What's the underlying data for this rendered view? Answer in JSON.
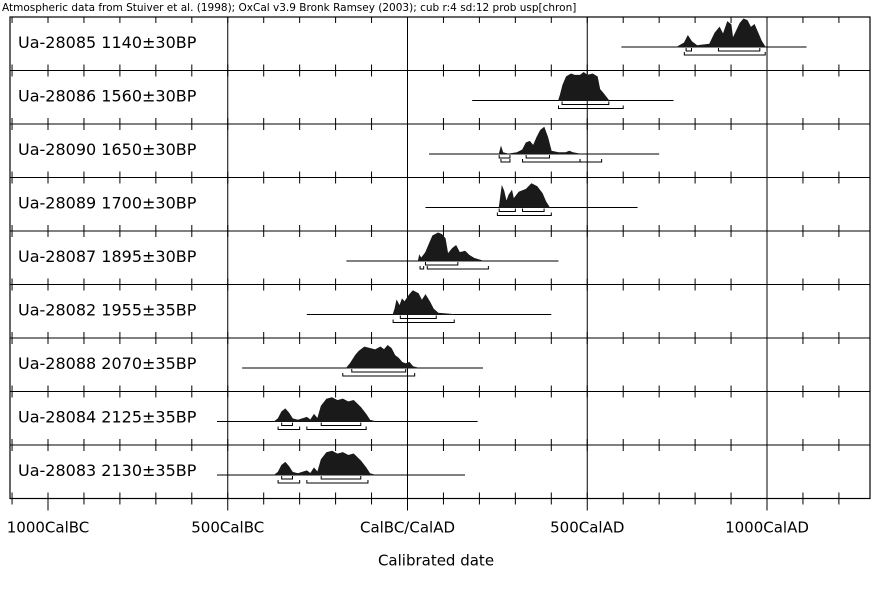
{
  "header": "Atmospheric data from Stuiver et al. (1998); OxCal v3.9 Bronk Ramsey (2003); cub r:4 sd:12 prob usp[chron]",
  "chart_data": {
    "type": "area",
    "xlabel": "Calibrated date",
    "xlim": [
      -1000,
      1400
    ],
    "x_ticks": [
      {
        "value": -1000,
        "label": "1000CalBC"
      },
      {
        "value": -500,
        "label": "500CalBC"
      },
      {
        "value": 0,
        "label": "CalBC/CalAD"
      },
      {
        "value": 500,
        "label": "500CalAD"
      },
      {
        "value": 1000,
        "label": "1000CalAD"
      }
    ],
    "series": [
      {
        "name": "Ua-28085  1140±30BP",
        "range": [
          595,
          1110
        ],
        "curve": [
          [
            750,
            0
          ],
          [
            770,
            0.15
          ],
          [
            780,
            0.4
          ],
          [
            790,
            0.2
          ],
          [
            805,
            0.05
          ],
          [
            840,
            0.1
          ],
          [
            855,
            0.5
          ],
          [
            868,
            0.7
          ],
          [
            878,
            0.45
          ],
          [
            890,
            0.9
          ],
          [
            900,
            0.8
          ],
          [
            905,
            0.3
          ],
          [
            912,
            0.5
          ],
          [
            925,
            0.85
          ],
          [
            935,
            1.0
          ],
          [
            945,
            0.95
          ],
          [
            955,
            0.7
          ],
          [
            965,
            0.8
          ],
          [
            975,
            0.5
          ],
          [
            985,
            0.2
          ],
          [
            995,
            0
          ]
        ],
        "hpd": [
          [
            [
              775,
              790
            ],
            [
              865,
              980
            ]
          ],
          [
            [
              770,
              995
            ]
          ]
        ]
      },
      {
        "name": "Ua-28086  1560±30BP",
        "range": [
          180,
          740
        ],
        "curve": [
          [
            420,
            0
          ],
          [
            425,
            0.2
          ],
          [
            432,
            0.55
          ],
          [
            442,
            0.85
          ],
          [
            455,
            0.95
          ],
          [
            465,
            0.9
          ],
          [
            480,
            0.9
          ],
          [
            490,
            1.0
          ],
          [
            500,
            0.9
          ],
          [
            515,
            0.95
          ],
          [
            528,
            0.85
          ],
          [
            535,
            0.4
          ],
          [
            545,
            0.25
          ],
          [
            560,
            0
          ]
        ],
        "hpd": [
          [
            [
              430,
              560
            ]
          ],
          [
            [
              420,
              600
            ]
          ]
        ]
      },
      {
        "name": "Ua-28090  1650±30BP",
        "range": [
          60,
          700
        ],
        "curve": [
          [
            255,
            0
          ],
          [
            260,
            0.25
          ],
          [
            265,
            0.05
          ],
          [
            280,
            0
          ],
          [
            305,
            0.05
          ],
          [
            320,
            0.15
          ],
          [
            330,
            0.4
          ],
          [
            340,
            0.45
          ],
          [
            350,
            0.3
          ],
          [
            360,
            0.6
          ],
          [
            370,
            0.85
          ],
          [
            380,
            0.95
          ],
          [
            390,
            0.6
          ],
          [
            400,
            0.1
          ],
          [
            420,
            0.05
          ],
          [
            440,
            0.05
          ],
          [
            450,
            0.1
          ],
          [
            460,
            0.05
          ],
          [
            480,
            0
          ]
        ],
        "hpd": [
          [
            [
              255,
              285
            ],
            [
              330,
              395
            ]
          ],
          [
            [
              260,
              285
            ],
            [
              320,
              480
            ],
            [
              480,
              540
            ]
          ]
        ]
      },
      {
        "name": "Ua-28089  1700±30BP",
        "range": [
          50,
          640
        ],
        "curve": [
          [
            255,
            0
          ],
          [
            258,
            0.3
          ],
          [
            263,
            0.75
          ],
          [
            268,
            0.6
          ],
          [
            275,
            0.2
          ],
          [
            282,
            0.45
          ],
          [
            290,
            0.6
          ],
          [
            295,
            0.3
          ],
          [
            310,
            0.55
          ],
          [
            330,
            0.65
          ],
          [
            345,
            0.85
          ],
          [
            360,
            0.75
          ],
          [
            375,
            0.5
          ],
          [
            385,
            0.2
          ],
          [
            395,
            0
          ]
        ],
        "hpd": [
          [
            [
              255,
              300
            ],
            [
              320,
              380
            ]
          ],
          [
            [
              250,
              400
            ]
          ]
        ]
      },
      {
        "name": "Ua-28087  1895±30BP",
        "range": [
          -170,
          420
        ],
        "curve": [
          [
            30,
            0
          ],
          [
            33,
            0.2
          ],
          [
            38,
            0.1
          ],
          [
            50,
            0.3
          ],
          [
            60,
            0.6
          ],
          [
            70,
            0.9
          ],
          [
            85,
            1.0
          ],
          [
            95,
            0.95
          ],
          [
            105,
            0.8
          ],
          [
            112,
            0.25
          ],
          [
            125,
            0.45
          ],
          [
            135,
            0.55
          ],
          [
            145,
            0.3
          ],
          [
            160,
            0.35
          ],
          [
            172,
            0.2
          ],
          [
            185,
            0.1
          ],
          [
            210,
            0
          ]
        ],
        "hpd": [
          [
            [
              50,
              140
            ]
          ],
          [
            [
              35,
              45
            ],
            [
              55,
              225
            ]
          ]
        ]
      },
      {
        "name": "Ua-28082  1955±35BP",
        "range": [
          -280,
          400
        ],
        "curve": [
          [
            -40,
            0
          ],
          [
            -35,
            0.2
          ],
          [
            -30,
            0.5
          ],
          [
            -22,
            0.3
          ],
          [
            -15,
            0.55
          ],
          [
            -8,
            0.45
          ],
          [
            5,
            0.7
          ],
          [
            15,
            0.85
          ],
          [
            30,
            0.75
          ],
          [
            40,
            0.5
          ],
          [
            50,
            0.7
          ],
          [
            62,
            0.45
          ],
          [
            72,
            0.2
          ],
          [
            85,
            0.05
          ],
          [
            110,
            0.02
          ],
          [
            130,
            0
          ]
        ],
        "hpd": [
          [
            [
              -20,
              80
            ]
          ],
          [
            [
              -40,
              130
            ]
          ]
        ]
      },
      {
        "name": "Ua-28088  2070±35BP",
        "range": [
          -460,
          210
        ],
        "curve": [
          [
            -170,
            0
          ],
          [
            -160,
            0.15
          ],
          [
            -150,
            0.35
          ],
          [
            -145,
            0.45
          ],
          [
            -135,
            0.6
          ],
          [
            -120,
            0.75
          ],
          [
            -105,
            0.7
          ],
          [
            -90,
            0.65
          ],
          [
            -75,
            0.75
          ],
          [
            -65,
            0.65
          ],
          [
            -55,
            0.8
          ],
          [
            -45,
            0.7
          ],
          [
            -35,
            0.45
          ],
          [
            -25,
            0.35
          ],
          [
            -15,
            0.2
          ],
          [
            -5,
            0.15
          ],
          [
            5,
            0.2
          ],
          [
            15,
            0.05
          ],
          [
            30,
            0
          ]
        ],
        "hpd": [
          [
            [
              -155,
              -5
            ]
          ],
          [
            [
              -180,
              20
            ]
          ]
        ]
      },
      {
        "name": "Ua-28084  2125±35BP",
        "range": [
          -530,
          195
        ],
        "curve": [
          [
            -370,
            0
          ],
          [
            -360,
            0.1
          ],
          [
            -350,
            0.35
          ],
          [
            -340,
            0.45
          ],
          [
            -330,
            0.3
          ],
          [
            -320,
            0.1
          ],
          [
            -305,
            0.05
          ],
          [
            -280,
            0.15
          ],
          [
            -270,
            0.05
          ],
          [
            -260,
            0.25
          ],
          [
            -250,
            0.1
          ],
          [
            -240,
            0.55
          ],
          [
            -225,
            0.8
          ],
          [
            -210,
            0.85
          ],
          [
            -195,
            0.75
          ],
          [
            -180,
            0.8
          ],
          [
            -165,
            0.7
          ],
          [
            -150,
            0.75
          ],
          [
            -130,
            0.5
          ],
          [
            -115,
            0.25
          ],
          [
            -105,
            0.05
          ],
          [
            -90,
            0
          ]
        ],
        "hpd": [
          [
            [
              -350,
              -320
            ],
            [
              -240,
              -130
            ]
          ],
          [
            [
              -360,
              -300
            ],
            [
              -280,
              -115
            ]
          ]
        ]
      },
      {
        "name": "Ua-28083  2130±35BP",
        "range": [
          -530,
          160
        ],
        "curve": [
          [
            -370,
            0
          ],
          [
            -360,
            0.1
          ],
          [
            -350,
            0.35
          ],
          [
            -340,
            0.45
          ],
          [
            -330,
            0.3
          ],
          [
            -320,
            0.1
          ],
          [
            -305,
            0.05
          ],
          [
            -280,
            0.15
          ],
          [
            -270,
            0.05
          ],
          [
            -260,
            0.25
          ],
          [
            -250,
            0.1
          ],
          [
            -240,
            0.55
          ],
          [
            -225,
            0.8
          ],
          [
            -210,
            0.85
          ],
          [
            -195,
            0.75
          ],
          [
            -180,
            0.8
          ],
          [
            -165,
            0.7
          ],
          [
            -150,
            0.75
          ],
          [
            -130,
            0.5
          ],
          [
            -115,
            0.25
          ],
          [
            -105,
            0.05
          ],
          [
            -90,
            0
          ]
        ],
        "hpd": [
          [
            [
              -350,
              -320
            ],
            [
              -240,
              -130
            ]
          ],
          [
            [
              -360,
              -300
            ],
            [
              -280,
              -110
            ]
          ]
        ]
      }
    ]
  }
}
